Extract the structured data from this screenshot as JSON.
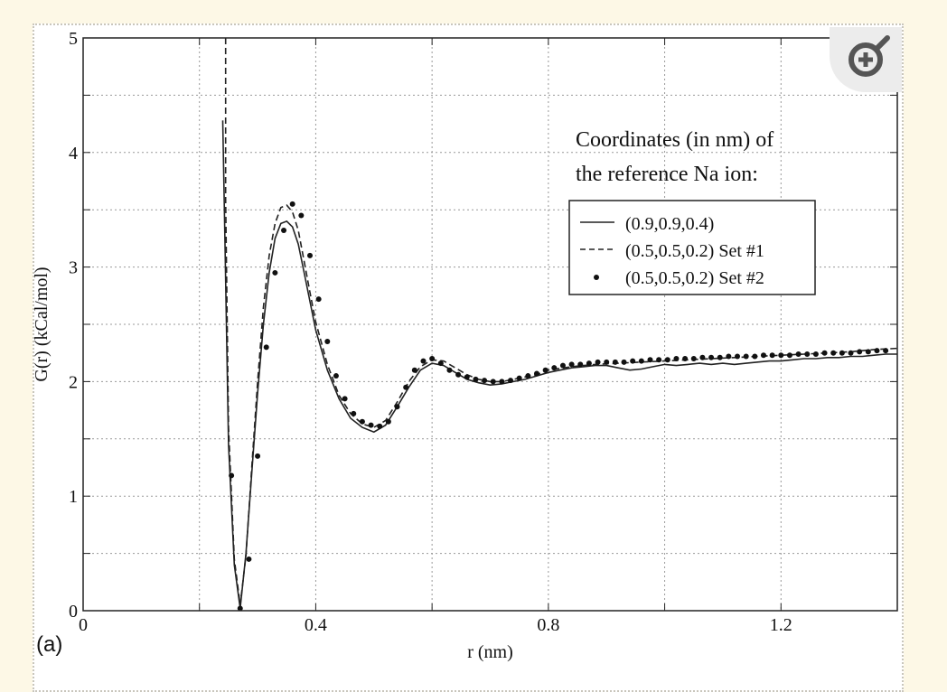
{
  "page": {
    "panel_label": "(a)",
    "zoom_icon": "zoom-in-icon"
  },
  "chart_data": {
    "type": "line",
    "title": "",
    "xlabel": "r (nm)",
    "ylabel": "G(r) (kCal/mol)",
    "xlim": [
      0,
      1.4
    ],
    "ylim": [
      0,
      5
    ],
    "xticks": [
      0,
      0.4,
      0.8,
      1.2
    ],
    "xtick_labels": [
      "0",
      "0.4",
      "0.8",
      "1.2"
    ],
    "yticks": [
      0,
      1,
      2,
      3,
      4,
      5
    ],
    "ytick_labels": [
      "0",
      "1",
      "2",
      "3",
      "4",
      "5"
    ],
    "grid": true,
    "legend_title": [
      "Coordinates (in nm) of",
      "the reference Na ion:"
    ],
    "legend_position": "upper-right",
    "series": [
      {
        "name": "(0.9,0.9,0.4)",
        "style": "solid",
        "x": [
          0.24,
          0.244,
          0.25,
          0.26,
          0.27,
          0.28,
          0.29,
          0.3,
          0.31,
          0.32,
          0.33,
          0.34,
          0.35,
          0.36,
          0.37,
          0.38,
          0.39,
          0.4,
          0.42,
          0.44,
          0.46,
          0.48,
          0.5,
          0.52,
          0.54,
          0.56,
          0.58,
          0.6,
          0.62,
          0.64,
          0.66,
          0.68,
          0.7,
          0.72,
          0.74,
          0.76,
          0.78,
          0.8,
          0.82,
          0.84,
          0.86,
          0.88,
          0.9,
          0.92,
          0.94,
          0.96,
          0.98,
          1.0,
          1.02,
          1.04,
          1.06,
          1.08,
          1.1,
          1.12,
          1.14,
          1.16,
          1.18,
          1.2,
          1.22,
          1.24,
          1.26,
          1.28,
          1.3,
          1.32,
          1.34,
          1.36,
          1.38,
          1.4
        ],
        "y": [
          4.28,
          3.2,
          1.45,
          0.4,
          0.02,
          0.5,
          1.2,
          1.9,
          2.5,
          2.95,
          3.25,
          3.38,
          3.4,
          3.35,
          3.2,
          2.95,
          2.7,
          2.45,
          2.1,
          1.85,
          1.68,
          1.6,
          1.56,
          1.62,
          1.78,
          1.95,
          2.1,
          2.16,
          2.14,
          2.08,
          2.02,
          1.99,
          1.97,
          1.98,
          2.0,
          2.02,
          2.05,
          2.08,
          2.1,
          2.12,
          2.13,
          2.14,
          2.14,
          2.12,
          2.1,
          2.11,
          2.13,
          2.15,
          2.14,
          2.15,
          2.16,
          2.15,
          2.16,
          2.15,
          2.16,
          2.17,
          2.18,
          2.18,
          2.19,
          2.2,
          2.2,
          2.21,
          2.21,
          2.22,
          2.22,
          2.23,
          2.24,
          2.24
        ]
      },
      {
        "name": "(0.5,0.5,0.2) Set #1",
        "style": "dashed",
        "x": [
          0.245,
          0.245,
          0.25,
          0.26,
          0.27,
          0.28,
          0.29,
          0.3,
          0.31,
          0.32,
          0.33,
          0.34,
          0.35,
          0.36,
          0.37,
          0.38,
          0.39,
          0.4,
          0.42,
          0.44,
          0.46,
          0.48,
          0.5,
          0.52,
          0.54,
          0.56,
          0.58,
          0.6,
          0.62,
          0.64,
          0.66,
          0.68,
          0.7,
          0.72,
          0.74,
          0.76,
          0.78,
          0.8,
          0.84,
          0.88,
          0.92,
          0.96,
          1.0,
          1.04,
          1.08,
          1.12,
          1.16,
          1.2,
          1.24,
          1.28,
          1.32,
          1.36,
          1.4
        ],
        "y": [
          5.0,
          3.6,
          1.6,
          0.45,
          0.05,
          0.48,
          1.25,
          2.0,
          2.65,
          3.1,
          3.38,
          3.52,
          3.54,
          3.48,
          3.32,
          3.05,
          2.78,
          2.52,
          2.15,
          1.88,
          1.72,
          1.63,
          1.6,
          1.66,
          1.82,
          2.0,
          2.13,
          2.19,
          2.18,
          2.12,
          2.06,
          2.02,
          2.0,
          2.0,
          2.02,
          2.04,
          2.06,
          2.1,
          2.13,
          2.15,
          2.16,
          2.17,
          2.18,
          2.19,
          2.2,
          2.21,
          2.22,
          2.23,
          2.24,
          2.25,
          2.26,
          2.28,
          2.29
        ]
      },
      {
        "name": "(0.5,0.5,0.2) Set #2",
        "style": "dots",
        "x": [
          0.255,
          0.27,
          0.285,
          0.3,
          0.315,
          0.33,
          0.345,
          0.36,
          0.375,
          0.39,
          0.405,
          0.42,
          0.435,
          0.45,
          0.465,
          0.48,
          0.495,
          0.51,
          0.525,
          0.54,
          0.555,
          0.57,
          0.585,
          0.6,
          0.615,
          0.63,
          0.645,
          0.66,
          0.675,
          0.69,
          0.705,
          0.72,
          0.735,
          0.75,
          0.765,
          0.78,
          0.795,
          0.81,
          0.825,
          0.84,
          0.855,
          0.87,
          0.885,
          0.9,
          0.915,
          0.93,
          0.945,
          0.96,
          0.975,
          0.99,
          1.005,
          1.02,
          1.035,
          1.05,
          1.065,
          1.08,
          1.095,
          1.11,
          1.125,
          1.14,
          1.155,
          1.17,
          1.185,
          1.2,
          1.215,
          1.23,
          1.245,
          1.26,
          1.275,
          1.29,
          1.305,
          1.32,
          1.335,
          1.35,
          1.365,
          1.38
        ],
        "y": [
          1.18,
          0.02,
          0.45,
          1.35,
          2.3,
          2.95,
          3.32,
          3.55,
          3.45,
          3.1,
          2.72,
          2.35,
          2.05,
          1.85,
          1.72,
          1.65,
          1.62,
          1.61,
          1.65,
          1.78,
          1.95,
          2.1,
          2.18,
          2.2,
          2.16,
          2.1,
          2.06,
          2.04,
          2.02,
          2.01,
          2.0,
          2.0,
          2.01,
          2.03,
          2.05,
          2.07,
          2.1,
          2.12,
          2.14,
          2.15,
          2.15,
          2.16,
          2.17,
          2.17,
          2.17,
          2.17,
          2.18,
          2.18,
          2.19,
          2.19,
          2.19,
          2.2,
          2.2,
          2.2,
          2.21,
          2.21,
          2.21,
          2.22,
          2.22,
          2.22,
          2.22,
          2.23,
          2.23,
          2.23,
          2.23,
          2.24,
          2.24,
          2.24,
          2.25,
          2.25,
          2.25,
          2.25,
          2.26,
          2.26,
          2.27,
          2.27
        ]
      }
    ]
  }
}
